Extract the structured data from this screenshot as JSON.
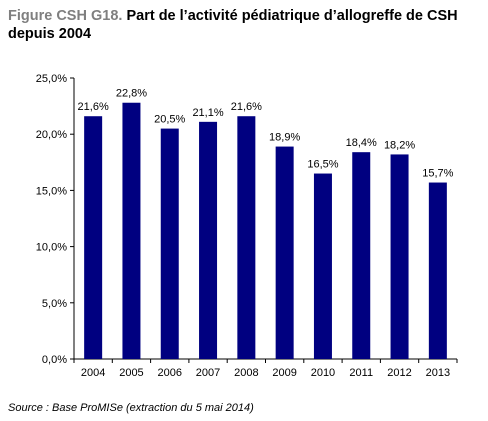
{
  "figure": {
    "prefix": "Figure CSH G18.",
    "title": "Part de l’activité pédiatrique d’allogreffe de CSH depuis 2004"
  },
  "source": "Source : Base ProMISe (extraction du 5 mai 2014)",
  "colors": {
    "bar": "#000080",
    "axis": "#000000",
    "title_prefix": "#7f7f7f"
  },
  "chart_data": {
    "type": "bar",
    "categories": [
      "2004",
      "2005",
      "2006",
      "2007",
      "2008",
      "2009",
      "2010",
      "2011",
      "2012",
      "2013"
    ],
    "values": [
      21.6,
      22.8,
      20.5,
      21.1,
      21.6,
      18.9,
      16.5,
      18.4,
      18.2,
      15.7
    ],
    "data_labels": [
      "21,6%",
      "22,8%",
      "20,5%",
      "21,1%",
      "21,6%",
      "18,9%",
      "16,5%",
      "18,4%",
      "18,2%",
      "15,7%"
    ],
    "y_ticks": [
      0,
      5,
      10,
      15,
      20,
      25
    ],
    "y_tick_labels": [
      "0,0%",
      "5,0%",
      "10,0%",
      "15,0%",
      "20,0%",
      "25,0%"
    ],
    "ylim": [
      0,
      25
    ],
    "xlabel": "",
    "ylabel": "",
    "grid": false,
    "legend": "none"
  }
}
